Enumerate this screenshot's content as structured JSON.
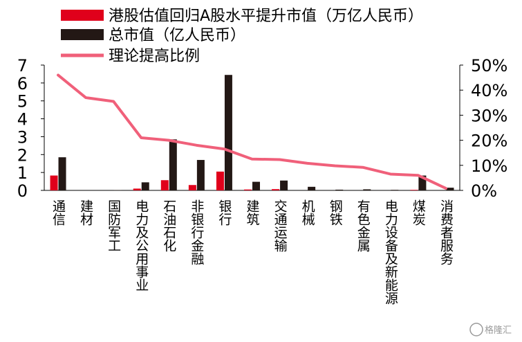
{
  "chart_data": {
    "type": "bar",
    "categories": [
      "通信",
      "建材",
      "国防军工",
      "电力及公用事业",
      "石油石化",
      "非银行金融",
      "银行",
      "建筑",
      "交通运输",
      "机械",
      "钢铁",
      "有色金属",
      "电力设备及新能源",
      "煤炭",
      "消费者服务"
    ],
    "series": [
      {
        "name": "港股估值回归A股水平提升市值（万亿人民币）",
        "kind": "bar",
        "axis": "left",
        "color": "#e0001b",
        "values": [
          0.83,
          0,
          0,
          0.1,
          0.57,
          0.3,
          1.05,
          0.05,
          0.07,
          0,
          0,
          0,
          0,
          0.03,
          0
        ]
      },
      {
        "name": "总市值（亿人民币）",
        "kind": "bar",
        "axis": "left",
        "color": "#231815",
        "values": [
          1.85,
          0,
          0.02,
          0.45,
          2.85,
          1.7,
          6.45,
          0.48,
          0.55,
          0.2,
          0.04,
          0.06,
          0.03,
          0.83,
          0.15
        ]
      },
      {
        "name": "理论提高比例",
        "kind": "line",
        "axis": "right",
        "color": "#f0607a",
        "values": [
          46,
          37,
          35.5,
          21,
          20,
          18,
          16.5,
          12.5,
          12.3,
          10.8,
          9.8,
          9.2,
          6.5,
          6,
          0.8
        ]
      }
    ],
    "left_axis": {
      "min": 0,
      "max": 7,
      "ticks": [
        "0",
        "1",
        "2",
        "3",
        "4",
        "5",
        "6",
        "7"
      ]
    },
    "right_axis": {
      "min": 0,
      "max": 50,
      "ticks": [
        "0%",
        "10%",
        "20%",
        "30%",
        "40%",
        "50%"
      ]
    },
    "legend_position": "top-left"
  },
  "watermark": "格隆汇"
}
